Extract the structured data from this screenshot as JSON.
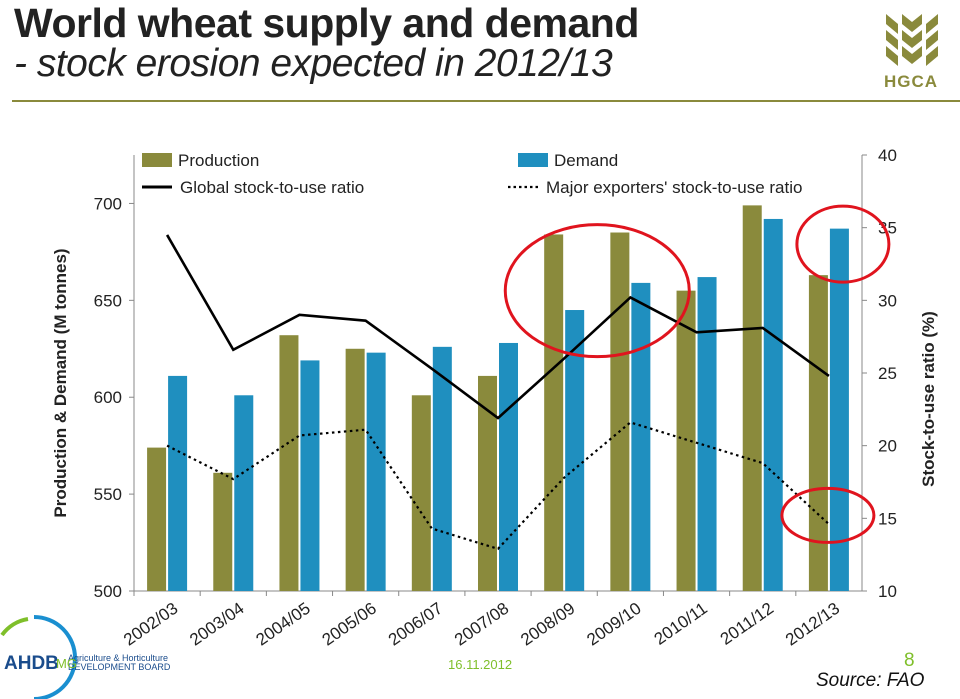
{
  "slide": {
    "title_line1": "World wheat supply and demand",
    "title_line2": "- stock erosion expected in 2012/13",
    "logo_text": "HGCA",
    "footer_org": "AHDB",
    "footer_org_sub1": "Agriculture & Horticulture",
    "footer_org_sub2": "DEVELOPMENT BOARD",
    "footer_author": "MG",
    "footer_date": "16.11.2012",
    "page_number": "8",
    "source": "Source: FAO"
  },
  "chart_data": {
    "type": "bar",
    "categories": [
      "2002/03",
      "2003/04",
      "2004/05",
      "2005/06",
      "2006/07",
      "2007/08",
      "2008/09",
      "2009/10",
      "2010/11",
      "2011/12",
      "2012/13"
    ],
    "series": [
      {
        "name": "Production",
        "type": "bar",
        "axis": "left",
        "color": "#8a8a3c",
        "values": [
          574,
          561,
          632,
          625,
          601,
          611,
          684,
          685,
          655,
          699,
          663
        ]
      },
      {
        "name": "Demand",
        "type": "bar",
        "axis": "left",
        "color": "#1f8fbf",
        "values": [
          611,
          601,
          619,
          623,
          626,
          628,
          645,
          659,
          662,
          692,
          687
        ]
      },
      {
        "name": "Global stock-to-use ratio",
        "type": "line",
        "axis": "right",
        "color": "#000000",
        "style": "solid",
        "values": [
          34.5,
          26.6,
          29.0,
          28.6,
          25.3,
          21.9,
          26.0,
          30.2,
          27.8,
          28.1,
          24.8
        ]
      },
      {
        "name": "Major exporters' stock-to-use ratio",
        "type": "line",
        "axis": "right",
        "color": "#000000",
        "style": "dotted",
        "values": [
          20.0,
          17.7,
          20.7,
          21.1,
          14.3,
          12.9,
          17.8,
          21.6,
          20.2,
          18.8,
          14.6
        ]
      }
    ],
    "ylabel": "Production & Demand (M tonnes)",
    "ylabel_right": "Stock-to-use ratio (%)",
    "ylim": [
      500,
      725
    ],
    "ylim_right": [
      10,
      40
    ],
    "yticks": [
      500,
      550,
      600,
      650,
      700
    ],
    "yticks_right": [
      10,
      15,
      20,
      25,
      30,
      35,
      40
    ],
    "grid": false,
    "legend": "top",
    "highlight_circles": [
      {
        "around": [
          "2008/09",
          "2009/10"
        ],
        "axis": "left",
        "center_value": 655
      },
      {
        "around": [
          "2012/13"
        ],
        "axis": "left",
        "center_value": 679
      },
      {
        "around": [
          "2012/13"
        ],
        "axis": "right",
        "center_value": 15.2
      }
    ]
  }
}
